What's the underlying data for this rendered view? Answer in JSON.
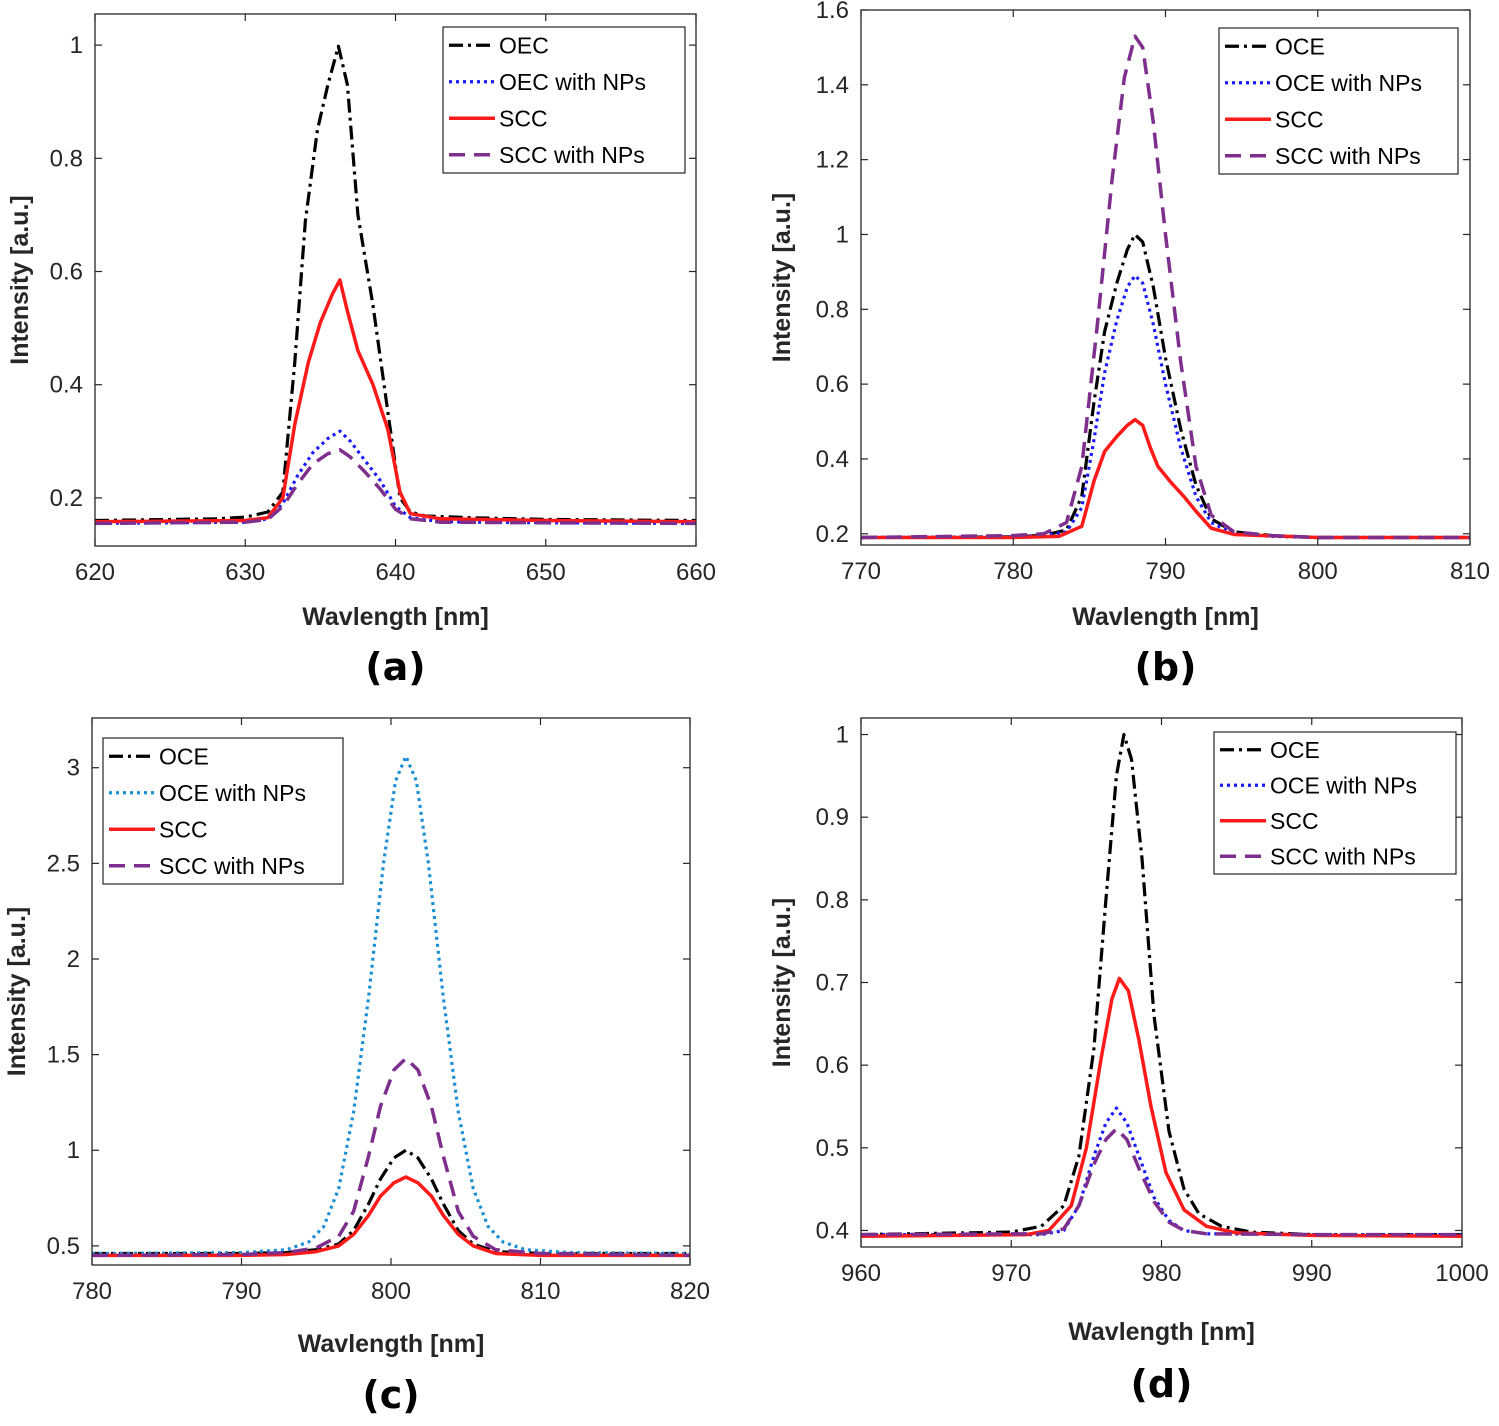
{
  "styles": {
    "OEC": {
      "color": "#000000",
      "dash": "14,5,3,5",
      "width": 3.2
    },
    "OCE": {
      "color": "#000000",
      "dash": "14,5,3,5",
      "width": 3.2
    },
    "OEC with NPs": {
      "color": "#1a1aff",
      "dash": "3,4",
      "width": 3.2
    },
    "OCE with NPs": {
      "color": "#1a1aff",
      "dash": "3,4",
      "width": 3.2
    },
    "OCE with NPs (c)": {
      "color": "#1a8fd6",
      "dash": "3,4",
      "width": 3.2
    },
    "SCC": {
      "color": "#ff1a1a",
      "dash": "",
      "width": 3.5
    },
    "SCC with NPs": {
      "color": "#7e2f8e",
      "dash": "16,9",
      "width": 3.5
    }
  },
  "chart_data": [
    {
      "panel_label": "(a)",
      "type": "line",
      "xlabel": "Wavlength [nm]",
      "ylabel": "Intensity [a.u.]",
      "xlim": [
        620,
        660
      ],
      "ylim": [
        0.115,
        1.055
      ],
      "xticks": [
        620,
        630,
        640,
        650,
        660
      ],
      "xtick_labels": [
        "620",
        "630",
        "640",
        "650",
        "660"
      ],
      "yticks": [
        0.2,
        0.4,
        0.6,
        0.8,
        1.0
      ],
      "ytick_labels": [
        "0.2",
        "0.4",
        "0.6",
        "0.8",
        "1"
      ],
      "grid": false,
      "legend_position": "top-right",
      "series": [
        {
          "name": "OEC",
          "style": "OEC",
          "x": [
            620,
            628,
            630,
            631.5,
            632.5,
            633.3,
            634,
            634.8,
            635.5,
            636.2,
            636.8,
            637.5,
            638.5,
            639.5,
            640.3,
            641,
            642,
            645,
            650,
            660
          ],
          "y": [
            0.16,
            0.163,
            0.166,
            0.175,
            0.21,
            0.44,
            0.69,
            0.85,
            0.93,
            0.998,
            0.93,
            0.7,
            0.54,
            0.35,
            0.2,
            0.175,
            0.168,
            0.165,
            0.162,
            0.16
          ]
        },
        {
          "name": "OEC with NPs",
          "style": "OEC with NPs",
          "x": [
            620,
            630,
            631.5,
            632.5,
            633.5,
            634.5,
            635.5,
            636.3,
            637,
            638,
            639,
            640,
            641,
            643,
            650,
            660
          ],
          "y": [
            0.155,
            0.157,
            0.163,
            0.19,
            0.24,
            0.28,
            0.305,
            0.318,
            0.3,
            0.265,
            0.23,
            0.185,
            0.165,
            0.158,
            0.156,
            0.155
          ]
        },
        {
          "name": "SCC",
          "style": "SCC",
          "x": [
            620,
            630,
            631.5,
            632.5,
            633.3,
            634.2,
            635,
            635.8,
            636.3,
            636.8,
            637.5,
            638.5,
            639.5,
            640.3,
            641,
            643,
            650,
            660
          ],
          "y": [
            0.158,
            0.16,
            0.165,
            0.2,
            0.33,
            0.44,
            0.51,
            0.56,
            0.585,
            0.53,
            0.46,
            0.4,
            0.32,
            0.21,
            0.172,
            0.163,
            0.16,
            0.158
          ]
        },
        {
          "name": "SCC with NPs",
          "style": "SCC with NPs",
          "x": [
            620,
            630,
            631.5,
            632.5,
            633.5,
            634.5,
            635.5,
            636.3,
            637,
            638,
            639,
            640,
            641,
            643,
            650,
            660
          ],
          "y": [
            0.155,
            0.157,
            0.162,
            0.185,
            0.225,
            0.26,
            0.278,
            0.285,
            0.272,
            0.245,
            0.215,
            0.18,
            0.163,
            0.157,
            0.156,
            0.155
          ]
        }
      ]
    },
    {
      "panel_label": "(b)",
      "type": "line",
      "xlabel": "Wavlength [nm]",
      "ylabel": "Intensity [a.u.]",
      "xlim": [
        770,
        810
      ],
      "ylim": [
        0.17,
        1.6
      ],
      "xticks": [
        770,
        780,
        790,
        800,
        810
      ],
      "xtick_labels": [
        "770",
        "780",
        "790",
        "800",
        "810"
      ],
      "yticks": [
        0.2,
        0.4,
        0.6,
        0.8,
        1.0,
        1.2,
        1.4,
        1.6
      ],
      "ytick_labels": [
        "0.2",
        "0.4",
        "0.6",
        "0.8",
        "1",
        "1.2",
        "1.4",
        "1.6"
      ],
      "grid": false,
      "legend_position": "top-right",
      "series": [
        {
          "name": "OCE",
          "style": "OCE",
          "x": [
            770,
            780,
            782,
            783.5,
            784.5,
            785.3,
            786,
            786.8,
            787.5,
            788,
            788.5,
            789.2,
            790,
            791,
            792,
            793,
            794.5,
            797,
            800,
            810
          ],
          "y": [
            0.19,
            0.192,
            0.196,
            0.21,
            0.3,
            0.55,
            0.74,
            0.87,
            0.96,
            1.0,
            0.98,
            0.86,
            0.67,
            0.48,
            0.33,
            0.24,
            0.205,
            0.195,
            0.19,
            0.19
          ]
        },
        {
          "name": "OCE with NPs",
          "style": "OCE with NPs",
          "x": [
            770,
            780,
            782,
            783.5,
            784.5,
            785.3,
            786,
            786.8,
            787.5,
            788,
            788.5,
            789.2,
            790,
            791,
            792,
            793,
            794.5,
            797,
            800,
            810
          ],
          "y": [
            0.19,
            0.192,
            0.195,
            0.205,
            0.27,
            0.45,
            0.63,
            0.77,
            0.86,
            0.89,
            0.87,
            0.76,
            0.6,
            0.43,
            0.3,
            0.23,
            0.2,
            0.193,
            0.19,
            0.19
          ]
        },
        {
          "name": "SCC",
          "style": "SCC",
          "x": [
            770,
            780,
            783,
            784.5,
            785.3,
            786,
            786.8,
            787.5,
            788,
            788.5,
            789,
            789.5,
            790.3,
            791.2,
            792,
            793,
            794.5,
            800,
            810
          ],
          "y": [
            0.19,
            0.19,
            0.193,
            0.22,
            0.34,
            0.42,
            0.46,
            0.49,
            0.505,
            0.49,
            0.43,
            0.38,
            0.34,
            0.3,
            0.26,
            0.215,
            0.198,
            0.19,
            0.19
          ]
        },
        {
          "name": "SCC with NPs",
          "style": "SCC with NPs",
          "x": [
            770,
            780,
            782,
            783.5,
            784.5,
            785.5,
            786.5,
            787.3,
            788,
            788.5,
            789.2,
            790,
            791,
            792,
            793,
            794.5,
            797,
            800,
            810
          ],
          "y": [
            0.19,
            0.195,
            0.2,
            0.23,
            0.38,
            0.75,
            1.15,
            1.42,
            1.53,
            1.5,
            1.3,
            1.0,
            0.66,
            0.38,
            0.25,
            0.205,
            0.195,
            0.19,
            0.19
          ]
        }
      ]
    },
    {
      "panel_label": "(c)",
      "type": "line",
      "xlabel": "Wavlength [nm]",
      "ylabel": "Intensity [a.u.]",
      "xlim": [
        780,
        820
      ],
      "ylim": [
        0.4,
        3.26
      ],
      "xticks": [
        780,
        790,
        800,
        810,
        820
      ],
      "xtick_labels": [
        "780",
        "790",
        "800",
        "810",
        "820"
      ],
      "yticks": [
        0.5,
        1.0,
        1.5,
        2.0,
        2.5,
        3.0
      ],
      "ytick_labels": [
        "0.5",
        "1",
        "1.5",
        "2",
        "2.5",
        "3"
      ],
      "grid": false,
      "legend_position": "top-left",
      "series": [
        {
          "name": "OCE",
          "style": "OCE",
          "x": [
            780,
            790,
            793,
            795,
            796.5,
            797.5,
            798.5,
            799.3,
            800.2,
            801,
            801.8,
            802.7,
            803.5,
            804.5,
            805.5,
            807,
            810,
            820
          ],
          "y": [
            0.46,
            0.46,
            0.465,
            0.48,
            0.51,
            0.58,
            0.72,
            0.85,
            0.96,
            1.0,
            0.96,
            0.85,
            0.72,
            0.58,
            0.51,
            0.47,
            0.46,
            0.46
          ]
        },
        {
          "name": "OCE with NPs",
          "style": "OCE with NPs (c)",
          "x": [
            780,
            790,
            793,
            794.5,
            795.5,
            796.5,
            797.5,
            798.5,
            799.5,
            800.3,
            801,
            801.7,
            802.5,
            803.5,
            804.5,
            805.5,
            806.5,
            807.5,
            809,
            812,
            820
          ],
          "y": [
            0.46,
            0.465,
            0.48,
            0.52,
            0.6,
            0.8,
            1.2,
            1.8,
            2.5,
            2.93,
            3.06,
            2.93,
            2.5,
            1.8,
            1.2,
            0.8,
            0.6,
            0.52,
            0.48,
            0.465,
            0.46
          ]
        },
        {
          "name": "SCC",
          "style": "SCC",
          "x": [
            780,
            790,
            793,
            795,
            796.5,
            797.5,
            798.5,
            799.3,
            800.2,
            801,
            801.8,
            802.7,
            803.5,
            804.5,
            805.5,
            807,
            810,
            820
          ],
          "y": [
            0.45,
            0.45,
            0.455,
            0.47,
            0.5,
            0.56,
            0.66,
            0.76,
            0.83,
            0.86,
            0.83,
            0.76,
            0.66,
            0.56,
            0.5,
            0.46,
            0.45,
            0.45
          ]
        },
        {
          "name": "SCC with NPs",
          "style": "SCC with NPs",
          "x": [
            780,
            790,
            793,
            795,
            796.5,
            797.5,
            798.5,
            799.3,
            800.2,
            801,
            801.8,
            802.7,
            803.5,
            804.5,
            805.5,
            807,
            810,
            820
          ],
          "y": [
            0.45,
            0.455,
            0.465,
            0.49,
            0.55,
            0.68,
            0.97,
            1.23,
            1.42,
            1.48,
            1.42,
            1.23,
            0.97,
            0.68,
            0.55,
            0.48,
            0.46,
            0.45
          ]
        }
      ]
    },
    {
      "panel_label": "(d)",
      "type": "line",
      "xlabel": "Wavlength [nm]",
      "ylabel": "Intensity [a.u.]",
      "xlim": [
        960,
        1000
      ],
      "ylim": [
        0.38,
        1.02
      ],
      "xticks": [
        960,
        970,
        980,
        990,
        1000
      ],
      "xtick_labels": [
        "960",
        "970",
        "980",
        "990",
        "1000"
      ],
      "yticks": [
        0.4,
        0.5,
        0.6,
        0.7,
        0.8,
        0.9,
        1.0
      ],
      "ytick_labels": [
        "0.4",
        "0.5",
        "0.6",
        "0.7",
        "0.8",
        "0.9",
        "1"
      ],
      "grid": false,
      "legend_position": "top-right",
      "series": [
        {
          "name": "OCE",
          "style": "OCE",
          "x": [
            960,
            970,
            972,
            973.5,
            974.5,
            975.5,
            976.3,
            977,
            977.5,
            978,
            978.7,
            979.5,
            980.5,
            981.5,
            982.5,
            984,
            986,
            990,
            1000
          ],
          "y": [
            0.395,
            0.398,
            0.405,
            0.43,
            0.49,
            0.62,
            0.8,
            0.95,
            1.0,
            0.97,
            0.85,
            0.66,
            0.52,
            0.45,
            0.42,
            0.405,
            0.398,
            0.395,
            0.395
          ]
        },
        {
          "name": "OCE with NPs",
          "style": "OCE with NPs",
          "x": [
            960,
            972,
            973.5,
            974.5,
            975.5,
            976.3,
            977,
            977.7,
            978.5,
            979.5,
            980.5,
            981.5,
            983,
            990,
            1000
          ],
          "y": [
            0.395,
            0.395,
            0.4,
            0.43,
            0.49,
            0.53,
            0.548,
            0.53,
            0.49,
            0.44,
            0.412,
            0.4,
            0.396,
            0.395,
            0.395
          ]
        },
        {
          "name": "SCC",
          "style": "SCC",
          "x": [
            960,
            971,
            972.5,
            974,
            975,
            976,
            976.7,
            977.2,
            977.8,
            978.5,
            979.3,
            980.3,
            981.5,
            983,
            985,
            990,
            1000
          ],
          "y": [
            0.393,
            0.395,
            0.4,
            0.43,
            0.5,
            0.61,
            0.68,
            0.705,
            0.69,
            0.63,
            0.55,
            0.47,
            0.425,
            0.405,
            0.397,
            0.394,
            0.393
          ]
        },
        {
          "name": "SCC with NPs",
          "style": "SCC with NPs",
          "x": [
            960,
            972,
            973.5,
            974.5,
            975.5,
            976.3,
            977,
            977.7,
            978.5,
            979.5,
            980.5,
            981.5,
            983,
            990,
            1000
          ],
          "y": [
            0.395,
            0.396,
            0.402,
            0.43,
            0.48,
            0.51,
            0.523,
            0.51,
            0.475,
            0.435,
            0.41,
            0.4,
            0.396,
            0.395,
            0.395
          ]
        }
      ]
    }
  ]
}
